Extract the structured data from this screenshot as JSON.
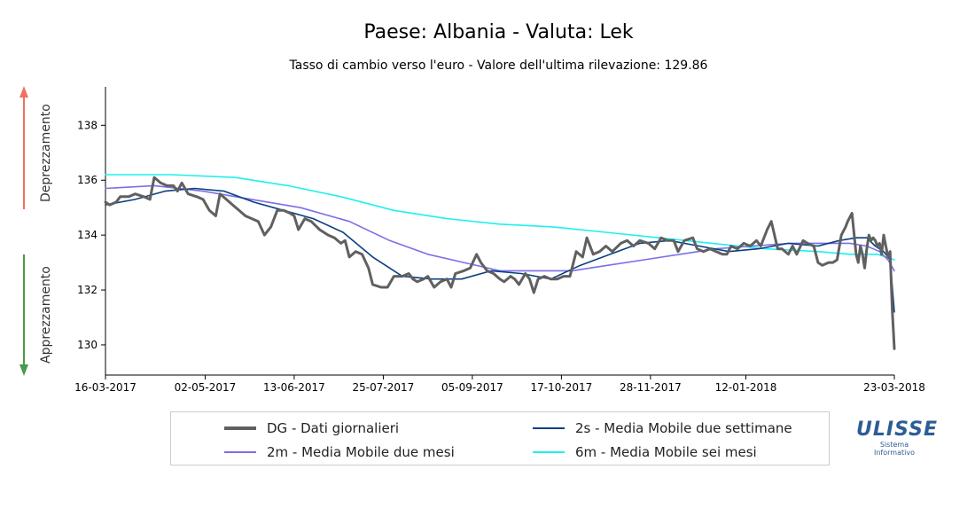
{
  "title": "Paese: Albania - Valuta: Lek",
  "subtitle": "Tasso di cambio verso l'euro - Valore dell'ultima rilevazione: 129.86",
  "side_labels": {
    "up": "Deprezzamento",
    "down": "Apprezzamento"
  },
  "colors": {
    "dg": "#606060",
    "ma2s": "#0b3f7f",
    "ma2m": "#7a6fe8",
    "ma6m": "#1ef0f0",
    "arrow_up": "#f07060",
    "arrow_down": "#4a9a48",
    "axis": "#000000",
    "logo": "#2c5d95"
  },
  "legend": [
    {
      "key": "dg",
      "label": "DG - Dati giornalieri"
    },
    {
      "key": "ma2s",
      "label": "2s - Media Mobile due settimane"
    },
    {
      "key": "ma2m",
      "label": "2m - Media Mobile due mesi"
    },
    {
      "key": "ma6m",
      "label": "6m - Media Mobile sei mesi"
    }
  ],
  "logo": {
    "mark": "ULISSE",
    "line1": "Sistema",
    "line2": "Informativo"
  },
  "chart_data": {
    "type": "line",
    "ylim": [
      128.9,
      139.4
    ],
    "yticks": [
      "130",
      "132",
      "134",
      "136",
      "138"
    ],
    "ytick_values": [
      130,
      132,
      134,
      136,
      138
    ],
    "x_range": [
      "16-03-2017",
      "23-03-2018"
    ],
    "xtick_labels": [
      "16-03-2017",
      "02-05-2017",
      "13-06-2017",
      "25-07-2017",
      "05-09-2017",
      "17-10-2017",
      "28-11-2017",
      "12-01-2018",
      "23-03-2018"
    ],
    "xtick_dates": [
      "2017-03-16",
      "2017-05-02",
      "2017-06-13",
      "2017-07-25",
      "2017-09-05",
      "2017-10-17",
      "2017-11-28",
      "2018-01-12",
      "2018-03-23"
    ],
    "series": [
      {
        "key": "dg",
        "name": "DG - Dati giornalieri",
        "points": [
          [
            "2017-03-16",
            135.2
          ],
          [
            "2017-03-18",
            135.1
          ],
          [
            "2017-03-21",
            135.2
          ],
          [
            "2017-03-23",
            135.4
          ],
          [
            "2017-03-27",
            135.4
          ],
          [
            "2017-03-30",
            135.5
          ],
          [
            "2017-04-03",
            135.4
          ],
          [
            "2017-04-06",
            135.3
          ],
          [
            "2017-04-08",
            136.1
          ],
          [
            "2017-04-11",
            135.9
          ],
          [
            "2017-04-14",
            135.8
          ],
          [
            "2017-04-17",
            135.8
          ],
          [
            "2017-04-19",
            135.6
          ],
          [
            "2017-04-21",
            135.9
          ],
          [
            "2017-04-24",
            135.5
          ],
          [
            "2017-04-28",
            135.4
          ],
          [
            "2017-05-01",
            135.3
          ],
          [
            "2017-05-04",
            134.9
          ],
          [
            "2017-05-07",
            134.7
          ],
          [
            "2017-05-09",
            135.5
          ],
          [
            "2017-05-12",
            135.3
          ],
          [
            "2017-05-15",
            135.1
          ],
          [
            "2017-05-18",
            134.9
          ],
          [
            "2017-05-21",
            134.7
          ],
          [
            "2017-05-24",
            134.6
          ],
          [
            "2017-05-27",
            134.5
          ],
          [
            "2017-05-30",
            134.0
          ],
          [
            "2017-06-02",
            134.3
          ],
          [
            "2017-06-05",
            134.9
          ],
          [
            "2017-06-08",
            134.9
          ],
          [
            "2017-06-11",
            134.8
          ],
          [
            "2017-06-13",
            134.7
          ],
          [
            "2017-06-15",
            134.2
          ],
          [
            "2017-06-18",
            134.6
          ],
          [
            "2017-06-21",
            134.5
          ],
          [
            "2017-06-25",
            134.2
          ],
          [
            "2017-06-29",
            134.0
          ],
          [
            "2017-07-02",
            133.9
          ],
          [
            "2017-07-05",
            133.7
          ],
          [
            "2017-07-07",
            133.8
          ],
          [
            "2017-07-09",
            133.2
          ],
          [
            "2017-07-12",
            133.4
          ],
          [
            "2017-07-15",
            133.3
          ],
          [
            "2017-07-18",
            132.8
          ],
          [
            "2017-07-20",
            132.2
          ],
          [
            "2017-07-24",
            132.1
          ],
          [
            "2017-07-27",
            132.1
          ],
          [
            "2017-07-30",
            132.5
          ],
          [
            "2017-08-03",
            132.5
          ],
          [
            "2017-08-06",
            132.6
          ],
          [
            "2017-08-08",
            132.4
          ],
          [
            "2017-08-10",
            132.3
          ],
          [
            "2017-08-13",
            132.4
          ],
          [
            "2017-08-15",
            132.5
          ],
          [
            "2017-08-18",
            132.1
          ],
          [
            "2017-08-21",
            132.3
          ],
          [
            "2017-08-24",
            132.4
          ],
          [
            "2017-08-26",
            132.1
          ],
          [
            "2017-08-28",
            132.6
          ],
          [
            "2017-09-01",
            132.7
          ],
          [
            "2017-09-04",
            132.8
          ],
          [
            "2017-09-07",
            133.3
          ],
          [
            "2017-09-09",
            133.0
          ],
          [
            "2017-09-12",
            132.7
          ],
          [
            "2017-09-15",
            132.6
          ],
          [
            "2017-09-18",
            132.4
          ],
          [
            "2017-09-20",
            132.3
          ],
          [
            "2017-09-23",
            132.5
          ],
          [
            "2017-09-25",
            132.4
          ],
          [
            "2017-09-27",
            132.2
          ],
          [
            "2017-09-30",
            132.6
          ],
          [
            "2017-10-02",
            132.4
          ],
          [
            "2017-10-04",
            131.9
          ],
          [
            "2017-10-06",
            132.4
          ],
          [
            "2017-10-09",
            132.5
          ],
          [
            "2017-10-12",
            132.4
          ],
          [
            "2017-10-15",
            132.4
          ],
          [
            "2017-10-18",
            132.5
          ],
          [
            "2017-10-21",
            132.5
          ],
          [
            "2017-10-24",
            133.4
          ],
          [
            "2017-10-27",
            133.2
          ],
          [
            "2017-10-29",
            133.9
          ],
          [
            "2017-11-01",
            133.3
          ],
          [
            "2017-11-04",
            133.4
          ],
          [
            "2017-11-07",
            133.6
          ],
          [
            "2017-11-10",
            133.4
          ],
          [
            "2017-11-14",
            133.7
          ],
          [
            "2017-11-17",
            133.8
          ],
          [
            "2017-11-20",
            133.6
          ],
          [
            "2017-11-23",
            133.8
          ],
          [
            "2017-11-27",
            133.7
          ],
          [
            "2017-11-30",
            133.5
          ],
          [
            "2017-12-03",
            133.9
          ],
          [
            "2017-12-06",
            133.8
          ],
          [
            "2017-12-09",
            133.8
          ],
          [
            "2017-12-11",
            133.4
          ],
          [
            "2017-12-14",
            133.8
          ],
          [
            "2017-12-18",
            133.9
          ],
          [
            "2017-12-20",
            133.5
          ],
          [
            "2017-12-23",
            133.4
          ],
          [
            "2017-12-26",
            133.5
          ],
          [
            "2017-12-29",
            133.4
          ],
          [
            "2018-01-01",
            133.3
          ],
          [
            "2018-01-03",
            133.3
          ],
          [
            "2018-01-05",
            133.6
          ],
          [
            "2018-01-08",
            133.5
          ],
          [
            "2018-01-11",
            133.7
          ],
          [
            "2018-01-14",
            133.6
          ],
          [
            "2018-01-17",
            133.8
          ],
          [
            "2018-01-19",
            133.6
          ],
          [
            "2018-01-22",
            134.2
          ],
          [
            "2018-01-24",
            134.5
          ],
          [
            "2018-01-27",
            133.5
          ],
          [
            "2018-01-29",
            133.5
          ],
          [
            "2018-02-01",
            133.3
          ],
          [
            "2018-02-03",
            133.6
          ],
          [
            "2018-02-05",
            133.3
          ],
          [
            "2018-02-08",
            133.8
          ],
          [
            "2018-02-10",
            133.7
          ],
          [
            "2018-02-13",
            133.6
          ],
          [
            "2018-02-15",
            133.0
          ],
          [
            "2018-02-17",
            132.9
          ],
          [
            "2018-02-20",
            133.0
          ],
          [
            "2018-02-22",
            133.0
          ],
          [
            "2018-02-24",
            133.1
          ],
          [
            "2018-02-26",
            134.0
          ],
          [
            "2018-02-28",
            134.3
          ],
          [
            "2018-03-01",
            134.5
          ],
          [
            "2018-03-03",
            134.8
          ],
          [
            "2018-03-05",
            133.3
          ],
          [
            "2018-03-06",
            133.0
          ],
          [
            "2018-03-07",
            133.6
          ],
          [
            "2018-03-08",
            133.3
          ],
          [
            "2018-03-09",
            132.8
          ],
          [
            "2018-03-10",
            133.5
          ],
          [
            "2018-03-11",
            134.0
          ],
          [
            "2018-03-12",
            133.8
          ],
          [
            "2018-03-13",
            133.9
          ],
          [
            "2018-03-14",
            133.8
          ],
          [
            "2018-03-15",
            133.6
          ],
          [
            "2018-03-16",
            133.7
          ],
          [
            "2018-03-17",
            133.3
          ],
          [
            "2018-03-18",
            134.0
          ],
          [
            "2018-03-19",
            133.6
          ],
          [
            "2018-03-20",
            133.2
          ],
          [
            "2018-03-21",
            133.4
          ],
          [
            "2018-03-22",
            131.3
          ],
          [
            "2018-03-23",
            129.86
          ]
        ]
      },
      {
        "key": "ma2s",
        "name": "2s - Media Mobile due settimane",
        "points": [
          [
            "2017-03-16",
            135.1
          ],
          [
            "2017-03-30",
            135.3
          ],
          [
            "2017-04-13",
            135.6
          ],
          [
            "2017-04-27",
            135.7
          ],
          [
            "2017-05-11",
            135.6
          ],
          [
            "2017-05-25",
            135.2
          ],
          [
            "2017-06-08",
            134.9
          ],
          [
            "2017-06-22",
            134.6
          ],
          [
            "2017-07-06",
            134.1
          ],
          [
            "2017-07-20",
            133.2
          ],
          [
            "2017-08-03",
            132.5
          ],
          [
            "2017-08-17",
            132.4
          ],
          [
            "2017-08-31",
            132.4
          ],
          [
            "2017-09-14",
            132.7
          ],
          [
            "2017-09-28",
            132.6
          ],
          [
            "2017-10-12",
            132.4
          ],
          [
            "2017-10-26",
            132.9
          ],
          [
            "2017-11-09",
            133.3
          ],
          [
            "2017-11-23",
            133.7
          ],
          [
            "2017-12-07",
            133.8
          ],
          [
            "2017-12-21",
            133.6
          ],
          [
            "2018-01-04",
            133.4
          ],
          [
            "2018-01-18",
            133.5
          ],
          [
            "2018-02-01",
            133.7
          ],
          [
            "2018-02-15",
            133.6
          ],
          [
            "2018-02-25",
            133.8
          ],
          [
            "2018-03-05",
            133.9
          ],
          [
            "2018-03-10",
            133.9
          ],
          [
            "2018-03-14",
            133.6
          ],
          [
            "2018-03-18",
            133.4
          ],
          [
            "2018-03-21",
            133.1
          ],
          [
            "2018-03-23",
            131.2
          ]
        ]
      },
      {
        "key": "ma2m",
        "name": "2m - Media Mobile due mesi",
        "points": [
          [
            "2017-03-16",
            135.7
          ],
          [
            "2017-04-08",
            135.8
          ],
          [
            "2017-05-01",
            135.6
          ],
          [
            "2017-05-24",
            135.3
          ],
          [
            "2017-06-16",
            135.0
          ],
          [
            "2017-07-09",
            134.5
          ],
          [
            "2017-07-28",
            133.8
          ],
          [
            "2017-08-15",
            133.3
          ],
          [
            "2017-09-01",
            133.0
          ],
          [
            "2017-09-18",
            132.7
          ],
          [
            "2017-10-05",
            132.7
          ],
          [
            "2017-10-22",
            132.7
          ],
          [
            "2017-11-08",
            132.9
          ],
          [
            "2017-11-25",
            133.1
          ],
          [
            "2017-12-12",
            133.3
          ],
          [
            "2017-12-29",
            133.5
          ],
          [
            "2018-01-15",
            133.6
          ],
          [
            "2018-02-02",
            133.7
          ],
          [
            "2018-02-19",
            133.7
          ],
          [
            "2018-03-02",
            133.7
          ],
          [
            "2018-03-10",
            133.6
          ],
          [
            "2018-03-16",
            133.4
          ],
          [
            "2018-03-20",
            133.1
          ],
          [
            "2018-03-23",
            132.7
          ]
        ]
      },
      {
        "key": "ma6m",
        "name": "6m - Media Mobile sei mesi",
        "points": [
          [
            "2017-03-16",
            136.2
          ],
          [
            "2017-04-16",
            136.2
          ],
          [
            "2017-05-16",
            136.1
          ],
          [
            "2017-06-10",
            135.8
          ],
          [
            "2017-07-05",
            135.4
          ],
          [
            "2017-07-30",
            134.9
          ],
          [
            "2017-08-24",
            134.6
          ],
          [
            "2017-09-18",
            134.4
          ],
          [
            "2017-10-13",
            134.3
          ],
          [
            "2017-11-07",
            134.1
          ],
          [
            "2017-12-02",
            133.9
          ],
          [
            "2017-12-27",
            133.7
          ],
          [
            "2018-01-21",
            133.5
          ],
          [
            "2018-02-15",
            133.4
          ],
          [
            "2018-03-02",
            133.3
          ],
          [
            "2018-03-15",
            133.3
          ],
          [
            "2018-03-23",
            133.1
          ]
        ]
      }
    ]
  }
}
